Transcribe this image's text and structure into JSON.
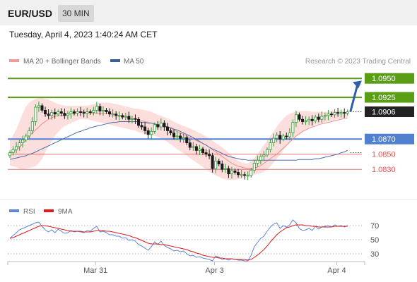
{
  "header": {
    "symbol": "EUR/USD",
    "timeframe": "30 MIN"
  },
  "datetime": "Tuesday, April 4, 2023 1:40:24 AM CET",
  "legend": {
    "bollinger": "MA 20 + Bollinger Bands",
    "ma50": "MA 50",
    "rsi": "RSI",
    "rsi_ma": "9MA"
  },
  "credit": "Research © 2023 Trading Central",
  "colors": {
    "green": "#5a9e16",
    "blue": "#4f81d0",
    "red": "#e05454",
    "dark": "#222222",
    "band": "#fbd3d0",
    "ma50": "#4a6fa8",
    "up": "#2e9e3a",
    "down": "#1a1a1a",
    "arrow": "#2f5fa8"
  },
  "chart_data": [
    {
      "type": "candlestick",
      "title": "",
      "ylim": [
        1.0806,
        1.0966
      ],
      "x_ticks": [
        {
          "label": "Mar 31",
          "index": 24
        },
        {
          "label": "Apr 3",
          "index": 61
        },
        {
          "label": "Apr 4",
          "index": 99
        }
      ],
      "close": [
        1.0852,
        1.0856,
        1.086,
        1.0865,
        1.0869,
        1.0874,
        1.0881,
        1.0893,
        1.0912,
        1.0914,
        1.0908,
        1.0903,
        1.0901,
        1.0905,
        1.0903,
        1.0906,
        1.0904,
        1.0901,
        1.0903,
        1.0906,
        1.0904,
        1.0906,
        1.0905,
        1.0904,
        1.0906,
        1.0905,
        1.0908,
        1.0913,
        1.0907,
        1.0908,
        1.0906,
        1.0903,
        1.0903,
        1.0901,
        1.0901,
        1.0899,
        1.09,
        1.0896,
        1.0897,
        1.0896,
        1.0888,
        1.0886,
        1.0881,
        1.0876,
        1.088,
        1.0889,
        1.0886,
        1.0891,
        1.0886,
        1.0881,
        1.0878,
        1.0873,
        1.0874,
        1.0871,
        1.0872,
        1.0865,
        1.0859,
        1.086,
        1.0855,
        1.0857,
        1.0852,
        1.085,
        1.0848,
        1.0831,
        1.0841,
        1.0837,
        1.083,
        1.0831,
        1.0824,
        1.0828,
        1.0826,
        1.0823,
        1.0823,
        1.0822,
        1.0822,
        1.0829,
        1.0838,
        1.0842,
        1.0847,
        1.0849,
        1.0856,
        1.0865,
        1.0871,
        1.0875,
        1.087,
        1.0874,
        1.0873,
        1.0878,
        1.0892,
        1.0902,
        1.0896,
        1.0893,
        1.0894,
        1.0896,
        1.0894,
        1.0899,
        1.0896,
        1.09,
        1.0901,
        1.0903,
        1.0902,
        1.0905,
        1.0904,
        1.0905,
        1.0904,
        1.0906
      ],
      "series": [
        {
          "name": "MA 20 + Bollinger Bands",
          "upper": [
            1.0868,
            1.0875,
            1.0883,
            1.0893,
            1.0904,
            1.0913,
            1.0918,
            1.0921,
            1.0923,
            1.0924,
            1.0924,
            1.0923,
            1.0922,
            1.092,
            1.0918,
            1.0916,
            1.0915,
            1.0914,
            1.0914,
            1.0914,
            1.0914,
            1.0914,
            1.0914,
            1.0914,
            1.0914,
            1.0915,
            1.0916,
            1.0917,
            1.0918,
            1.0918,
            1.0918,
            1.0918,
            1.0917,
            1.0916,
            1.0915,
            1.0914,
            1.0913,
            1.0912,
            1.0911,
            1.091,
            1.091,
            1.0909,
            1.0908,
            1.0907,
            1.0906,
            1.0904,
            1.0902,
            1.0901,
            1.0899,
            1.0897,
            1.0895,
            1.0893,
            1.0891,
            1.0889,
            1.0887,
            1.0886,
            1.0884,
            1.0882,
            1.088,
            1.0878,
            1.0876,
            1.0873,
            1.0871,
            1.0868,
            1.0865,
            1.0862,
            1.0859,
            1.0856,
            1.0852,
            1.0848,
            1.0844,
            1.0841,
            1.0839,
            1.0838,
            1.0838,
            1.084,
            1.0845,
            1.085,
            1.0856,
            1.0862,
            1.0868,
            1.0874,
            1.088,
            1.0886,
            1.0892,
            1.0897,
            1.0901,
            1.0903,
            1.0905,
            1.0906,
            1.0907,
            1.0907,
            1.0907,
            1.0907,
            1.0906,
            1.0906,
            1.0906,
            1.0906,
            1.0906,
            1.0906,
            1.0907,
            1.0907,
            1.0907,
            1.0907,
            1.0906,
            1.0906
          ],
          "mid": [
            1.0851,
            1.0853,
            1.0856,
            1.0859,
            1.0864,
            1.0869,
            1.0874,
            1.0878,
            1.0882,
            1.0886,
            1.089,
            1.0893,
            1.0896,
            1.0898,
            1.09,
            1.0901,
            1.0901,
            1.0901,
            1.0902,
            1.0903,
            1.0904,
            1.0905,
            1.0906,
            1.0906,
            1.0905,
            1.0904,
            1.0904,
            1.0904,
            1.0904,
            1.0904,
            1.0904,
            1.0904,
            1.0903,
            1.0902,
            1.0901,
            1.09,
            1.0899,
            1.0898,
            1.0897,
            1.0896,
            1.0895,
            1.0894,
            1.0893,
            1.0892,
            1.0891,
            1.089,
            1.0889,
            1.0888,
            1.0887,
            1.0886,
            1.0884,
            1.0882,
            1.088,
            1.0878,
            1.0876,
            1.0874,
            1.0872,
            1.087,
            1.0868,
            1.0866,
            1.0864,
            1.0862,
            1.0859,
            1.0856,
            1.0853,
            1.085,
            1.0847,
            1.0844,
            1.0841,
            1.0838,
            1.0836,
            1.0834,
            1.0833,
            1.0832,
            1.0831,
            1.0831,
            1.0832,
            1.0833,
            1.0835,
            1.0838,
            1.0841,
            1.0844,
            1.0847,
            1.085,
            1.0854,
            1.0858,
            1.0862,
            1.0866,
            1.087,
            1.0874,
            1.0877,
            1.088,
            1.0882,
            1.0884,
            1.0886,
            1.0887,
            1.0889,
            1.089,
            1.0891,
            1.0892,
            1.0893,
            1.0894,
            1.0895,
            1.0896,
            1.0897,
            1.0898
          ],
          "lower": [
            1.0835,
            1.0834,
            1.0833,
            1.0831,
            1.083,
            1.0831,
            1.0832,
            1.0833,
            1.0834,
            1.0838,
            1.0844,
            1.0852,
            1.086,
            1.0867,
            1.0874,
            1.0879,
            1.0884,
            1.0887,
            1.0889,
            1.0891,
            1.0893,
            1.0895,
            1.0896,
            1.0896,
            1.0896,
            1.0895,
            1.0894,
            1.0893,
            1.0892,
            1.0891,
            1.089,
            1.0889,
            1.0888,
            1.0887,
            1.0886,
            1.0885,
            1.0884,
            1.0883,
            1.0882,
            1.0881,
            1.0879,
            1.0878,
            1.0877,
            1.0876,
            1.0875,
            1.0874,
            1.0873,
            1.0871,
            1.0869,
            1.0866,
            1.0863,
            1.086,
            1.0857,
            1.0854,
            1.0851,
            1.0848,
            1.0845,
            1.0842,
            1.0839,
            1.0836,
            1.0833,
            1.083,
            1.0827,
            1.0824,
            1.0822,
            1.082,
            1.0818,
            1.0817,
            1.0816,
            1.0816,
            1.0816,
            1.0817,
            1.0818,
            1.082,
            1.0821,
            1.0822,
            1.0823,
            1.0824,
            1.0825,
            1.0827,
            1.083,
            1.0834,
            1.0839,
            1.0844,
            1.0849,
            1.0855,
            1.086,
            1.0865,
            1.0869,
            1.0873,
            1.0876,
            1.0879,
            1.0882,
            1.0885,
            1.0887,
            1.0889,
            1.089,
            1.0891,
            1.0892,
            1.0893,
            1.0894,
            1.0895,
            1.0896,
            1.0897,
            1.0898,
            1.0899
          ]
        },
        {
          "name": "MA 50",
          "values": [
            1.0843,
            1.0844,
            1.0845,
            1.0846,
            1.0847,
            1.0848,
            1.085,
            1.0851,
            1.0853,
            1.0855,
            1.0857,
            1.0859,
            1.0861,
            1.0863,
            1.0865,
            1.0867,
            1.0869,
            1.0871,
            1.0873,
            1.0875,
            1.0877,
            1.0879,
            1.088,
            1.0882,
            1.0883,
            1.0885,
            1.0886,
            1.0887,
            1.0888,
            1.0889,
            1.089,
            1.0891,
            1.0892,
            1.0892,
            1.0893,
            1.0893,
            1.0893,
            1.0893,
            1.0893,
            1.0893,
            1.0893,
            1.0892,
            1.0892,
            1.0891,
            1.0891,
            1.089,
            1.0889,
            1.0888,
            1.0887,
            1.0886,
            1.0885,
            1.0883,
            1.0882,
            1.088,
            1.0878,
            1.0876,
            1.0874,
            1.0872,
            1.0869,
            1.0867,
            1.0864,
            1.0862,
            1.0859,
            1.0857,
            1.0855,
            1.0853,
            1.0851,
            1.0849,
            1.0847,
            1.0846,
            1.0845,
            1.0844,
            1.0843,
            1.0843,
            1.0842,
            1.0842,
            1.0842,
            1.0842,
            1.0842,
            1.0842,
            1.0842,
            1.0842,
            1.0842,
            1.0842,
            1.0842,
            1.0842,
            1.0842,
            1.0842,
            1.0842,
            1.0842,
            1.0843,
            1.0843,
            1.0843,
            1.0843,
            1.0843,
            1.0844,
            1.0844,
            1.0845,
            1.0846,
            1.0847,
            1.0848,
            1.0849,
            1.085,
            1.0852,
            1.0853,
            1.0855
          ]
        }
      ],
      "levels": [
        {
          "value": 1.095,
          "label": "1.0950",
          "kind": "green",
          "badge": true
        },
        {
          "value": 1.0925,
          "label": "1.0925",
          "kind": "green",
          "badge": true
        },
        {
          "value": 1.0906,
          "label": "1.0906",
          "kind": "dark",
          "badge": true
        },
        {
          "value": 1.087,
          "label": "1.0870",
          "kind": "blue",
          "badge": true
        },
        {
          "value": 1.085,
          "label": "1.0850",
          "kind": "red",
          "badge": false
        },
        {
          "value": 1.083,
          "label": "1.0830",
          "kind": "red",
          "badge": false
        }
      ],
      "arrow": {
        "from_index": 105,
        "from": 1.0906,
        "to": 1.0947
      }
    },
    {
      "type": "line",
      "title": "",
      "ylim": [
        20,
        80
      ],
      "y_ticks": [
        70,
        50,
        30
      ],
      "series": [
        {
          "name": "RSI",
          "values": [
            52,
            56,
            60,
            64,
            66,
            68,
            70,
            72,
            74,
            75,
            69,
            64,
            61,
            64,
            60,
            65,
            62,
            59,
            60,
            63,
            61,
            62,
            61,
            60,
            63,
            62,
            66,
            69,
            61,
            62,
            60,
            57,
            57,
            55,
            55,
            52,
            53,
            49,
            50,
            48,
            43,
            41,
            38,
            35,
            40,
            47,
            43,
            48,
            42,
            39,
            37,
            34,
            35,
            33,
            34,
            30,
            27,
            28,
            25,
            26,
            24,
            23,
            22,
            20,
            27,
            25,
            22,
            23,
            21,
            23,
            22,
            21,
            21,
            20,
            20,
            28,
            40,
            46,
            52,
            55,
            62,
            68,
            72,
            74,
            66,
            70,
            68,
            71,
            78,
            74,
            66,
            63,
            64,
            66,
            63,
            69,
            65,
            68,
            69,
            70,
            68,
            71,
            69,
            70,
            68,
            70
          ]
        },
        {
          "name": "9MA",
          "values": [
            52,
            53,
            55,
            57,
            59,
            61,
            63,
            65,
            67,
            69,
            70,
            70,
            69,
            68,
            67,
            66,
            65,
            64,
            63,
            62,
            62,
            62,
            62,
            61,
            61,
            61,
            62,
            63,
            63,
            63,
            62,
            62,
            61,
            60,
            59,
            58,
            57,
            56,
            54,
            53,
            51,
            49,
            47,
            45,
            44,
            44,
            44,
            43,
            43,
            42,
            41,
            40,
            39,
            38,
            37,
            36,
            34,
            33,
            31,
            30,
            28,
            27,
            26,
            25,
            25,
            24,
            24,
            23,
            23,
            23,
            22,
            22,
            22,
            22,
            21,
            22,
            25,
            28,
            32,
            36,
            41,
            47,
            52,
            57,
            61,
            64,
            67,
            68,
            70,
            71,
            71,
            71,
            70,
            70,
            69,
            69,
            68,
            68,
            68,
            68,
            68,
            69,
            69,
            69,
            69,
            69
          ]
        }
      ]
    }
  ]
}
